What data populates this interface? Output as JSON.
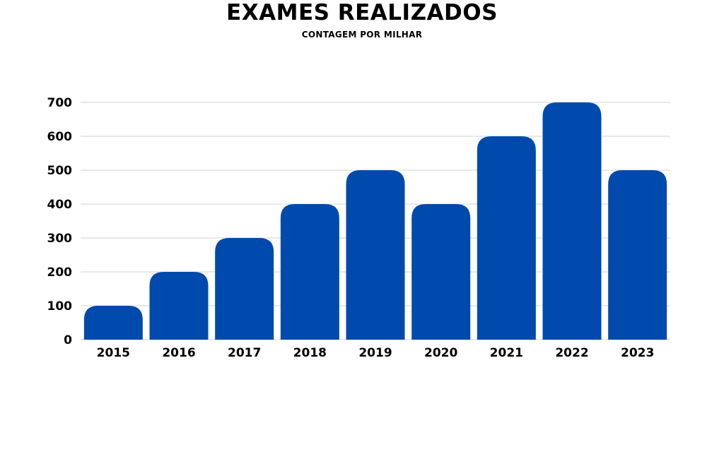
{
  "chart_data": {
    "type": "bar",
    "title": "EXAMES REALIZADOS",
    "subtitle": "CONTAGEM POR MILHAR",
    "xlabel": "",
    "ylabel": "",
    "categories": [
      "2015",
      "2016",
      "2017",
      "2018",
      "2019",
      "2020",
      "2021",
      "2022",
      "2023"
    ],
    "values": [
      100,
      200,
      300,
      400,
      500,
      400,
      600,
      700,
      500
    ],
    "ylim": [
      0,
      700
    ],
    "yticks": [
      "0",
      "100",
      "200",
      "300",
      "400",
      "500",
      "600",
      "700"
    ],
    "grid": true,
    "legend": "none",
    "bar_color": "#004AAD",
    "grid_color": "#D9D9D9"
  }
}
